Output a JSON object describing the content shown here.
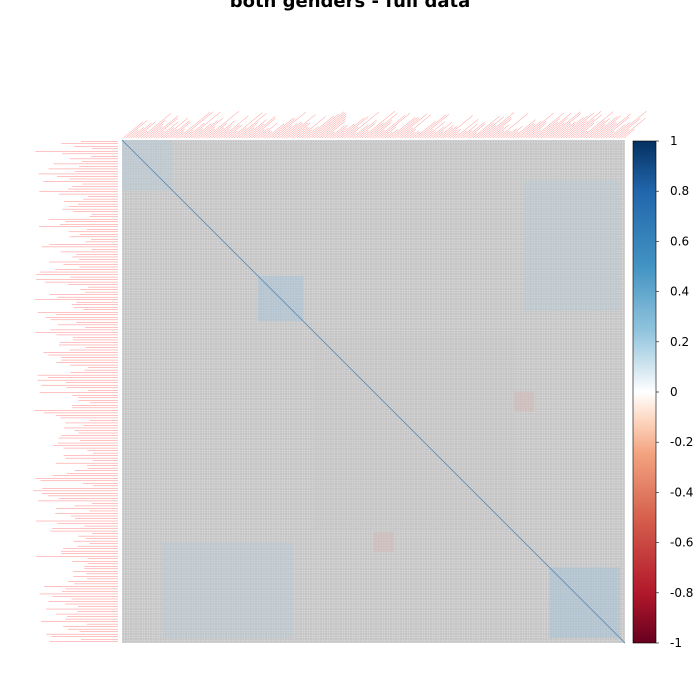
{
  "chart_data": {
    "type": "heatmap",
    "title": "both genders - full data",
    "xlabel": "",
    "ylabel": "",
    "value_range": [
      -1,
      1
    ],
    "legend": {
      "position": "right",
      "ticks": [
        "1",
        "0.8",
        "0.6",
        "0.4",
        "0.2",
        "0",
        "-0.2",
        "-0.4",
        "-0.6",
        "-0.8",
        "-1"
      ],
      "tick_values": [
        1,
        0.8,
        0.6,
        0.4,
        0.2,
        0,
        -0.2,
        -0.4,
        -0.6,
        -0.8,
        -1
      ]
    },
    "colors": {
      "negative_strong": "#67001f",
      "negative_mid": "#d6604d",
      "neutral": "#ffffff",
      "positive_mid": "#4393c3",
      "positive_strong": "#053061",
      "label_color": "#ff3333",
      "cell_base": "#c0c0c0"
    },
    "matrix": {
      "note_visible": "variable labels illegible",
      "diagonal_value": 1,
      "off_diagonal_typical": 0,
      "grid_lines": true
    }
  }
}
